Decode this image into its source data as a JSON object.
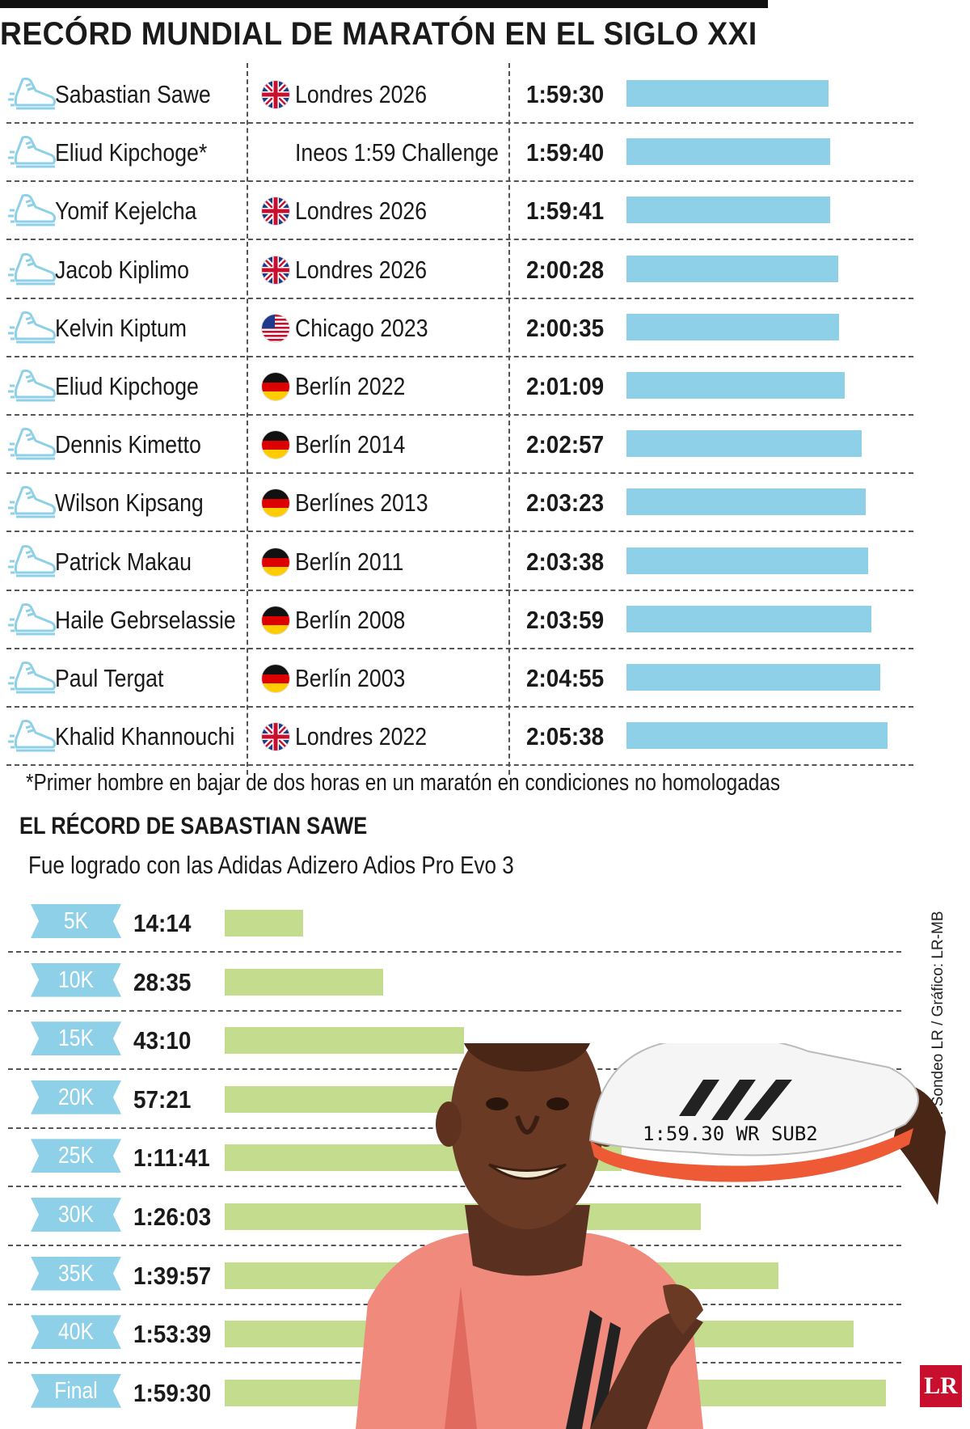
{
  "title": "RECÓRD MUNDIAL DE MARATÓN EN EL SIGLO XXI",
  "chart_data": [
    {
      "type": "bar",
      "orientation": "horizontal",
      "title": "RECÓRD MUNDIAL DE MARATÓN EN EL SIGLO XXI",
      "rows": [
        {
          "name": "Sabastian Sawe",
          "flag": "uk",
          "event": "Londres 2026",
          "time": "1:59:30",
          "seconds": 7170
        },
        {
          "name": "Eliud Kipchoge*",
          "flag": "",
          "event": "Ineos 1:59 Challenge",
          "time": "1:59:40",
          "seconds": 7180
        },
        {
          "name": "Yomif Kejelcha",
          "flag": "uk",
          "event": "Londres 2026",
          "time": "1:59:41",
          "seconds": 7181
        },
        {
          "name": "Jacob Kiplimo",
          "flag": "uk",
          "event": "Londres 2026",
          "time": "2:00:28",
          "seconds": 7228
        },
        {
          "name": "Kelvin Kiptum",
          "flag": "us",
          "event": "Chicago 2023",
          "time": "2:00:35",
          "seconds": 7235
        },
        {
          "name": "Eliud Kipchoge",
          "flag": "de",
          "event": "Berlín 2022",
          "time": "2:01:09",
          "seconds": 7269
        },
        {
          "name": "Dennis Kimetto",
          "flag": "de",
          "event": "Berlín 2014",
          "time": "2:02:57",
          "seconds": 7377
        },
        {
          "name": "Wilson Kipsang",
          "flag": "de",
          "event": "Berlínes 2013",
          "time": "2:03:23",
          "seconds": 7403
        },
        {
          "name": "Patrick Makau",
          "flag": "de",
          "event": "Berlín 2011",
          "time": "2:03:38",
          "seconds": 7418
        },
        {
          "name": "Haile Gebrselassie",
          "flag": "de",
          "event": "Berlín 2008",
          "time": "2:03:59",
          "seconds": 7439
        },
        {
          "name": "Paul Tergat",
          "flag": "de",
          "event": "Berlín 2003",
          "time": "2:04:55",
          "seconds": 7495
        },
        {
          "name": "Khalid Khannouchi",
          "flag": "uk",
          "event": "Londres 2022",
          "time": "2:05:38",
          "seconds": 7538
        }
      ]
    },
    {
      "type": "bar",
      "orientation": "horizontal",
      "title": "EL RÉCORD DE SABASTIAN SAWE",
      "subtitle": "Fue logrado con las Adidas Adizero Adios Pro Evo 3",
      "categories": [
        "5K",
        "10K",
        "15K",
        "20K",
        "25K",
        "30K",
        "35K",
        "40K",
        "Final"
      ],
      "times": [
        "14:14",
        "28:35",
        "43:10",
        "57:21",
        "1:11:41",
        "1:26:03",
        "1:39:57",
        "1:53:39",
        "1:59:30"
      ],
      "seconds": [
        854,
        1715,
        2590,
        3441,
        4301,
        5163,
        5997,
        6819,
        7170
      ]
    }
  ],
  "footnote": "*Primer hombre en bajar de dos horas en un maratón en condiciones no homologadas",
  "credit": "Fuente: Sondeo LR / Gráfico: LR-MB",
  "shoe_text": "1:59.30 WR SUB2",
  "logo": "LR",
  "colors": {
    "record_bar": "#8ed0e8",
    "split_bar": "#c4dc8e",
    "tag": "#8ed0e8",
    "logo": "#c8102e"
  }
}
